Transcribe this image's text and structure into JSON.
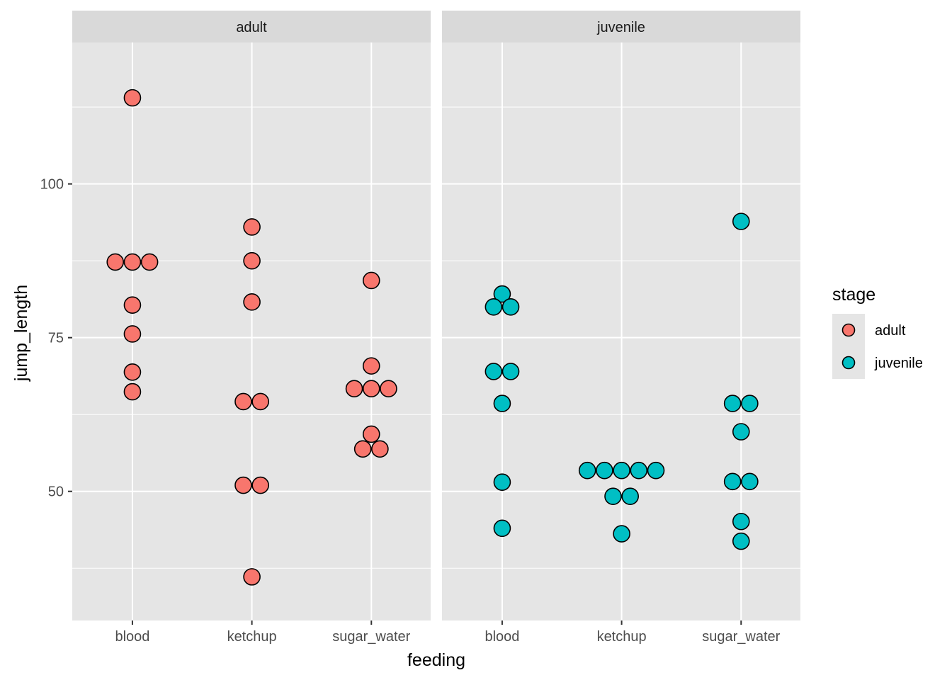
{
  "chart_data": {
    "type": "scatter",
    "subtype": "dotplot",
    "xlabel": "feeding",
    "ylabel": "jump_length",
    "categories": [
      "blood",
      "ketchup",
      "sugar_water"
    ],
    "ylim": [
      29,
      123
    ],
    "yticks": [
      50,
      75,
      100
    ],
    "grid": true,
    "facets": [
      "adult",
      "juvenile"
    ],
    "legend": {
      "title": "stage",
      "position": "right",
      "entries": [
        {
          "label": "adult",
          "color": "#f8766d"
        },
        {
          "label": "juvenile",
          "color": "#00bfc4"
        }
      ]
    },
    "series": [
      {
        "name": "adult",
        "facet": "adult",
        "color": "#f8766d",
        "points": {
          "blood": [
            114,
            87.3,
            87.3,
            87.3,
            80.3,
            75.6,
            69.4,
            66.2
          ],
          "ketchup": [
            93.0,
            87.5,
            80.8,
            64.6,
            64.6,
            51.0,
            51.0,
            36.1
          ],
          "sugar_water": [
            84.3,
            70.4,
            66.7,
            66.7,
            66.7,
            59.3,
            56.9,
            56.9
          ]
        }
      },
      {
        "name": "juvenile",
        "facet": "juvenile",
        "color": "#00bfc4",
        "points": {
          "blood": [
            82.1,
            80.0,
            80.0,
            69.5,
            69.5,
            64.3,
            51.5,
            44.0
          ],
          "ketchup": [
            53.4,
            53.4,
            53.4,
            53.4,
            53.4,
            49.2,
            49.2,
            43.1
          ],
          "sugar_water": [
            93.9,
            64.3,
            64.3,
            59.7,
            51.6,
            51.6,
            45.1,
            41.9
          ]
        }
      }
    ]
  }
}
